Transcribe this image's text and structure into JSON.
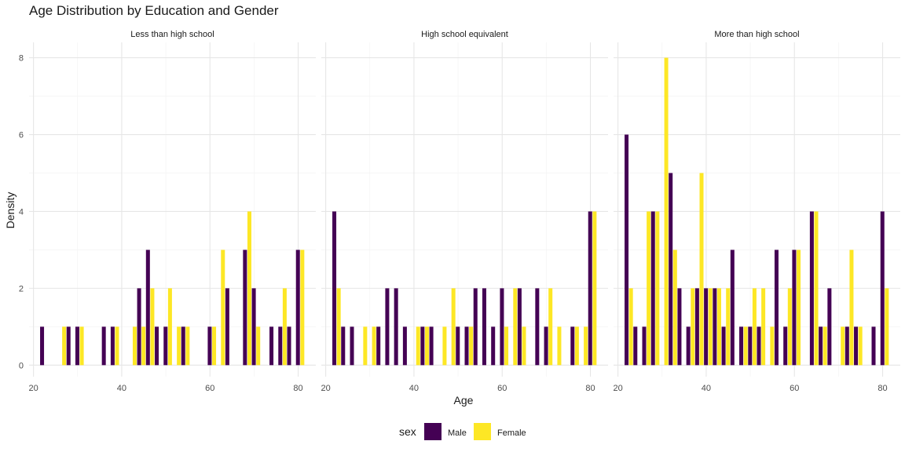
{
  "chart_data": {
    "type": "bar",
    "title": "Age Distribution by Education and Gender",
    "xlabel": "Age",
    "ylabel": "Density",
    "xlim": [
      19,
      84
    ],
    "ylim": [
      -0.3,
      8.4
    ],
    "x_ticks": [
      20,
      40,
      60,
      80
    ],
    "y_ticks": [
      0,
      2,
      4,
      6,
      8
    ],
    "grid": true,
    "legend": {
      "title": "sex",
      "placement": "bottom",
      "entries": [
        {
          "name": "Male",
          "color": "#440154"
        },
        {
          "name": "Female",
          "color": "#FDE725"
        }
      ]
    },
    "panels": [
      {
        "name": "Less than high school",
        "series": [
          {
            "name": "Male",
            "points": [
              [
                22,
                1
              ],
              [
                28,
                1
              ],
              [
                30,
                1
              ],
              [
                36,
                1
              ],
              [
                38,
                1
              ],
              [
                44,
                2
              ],
              [
                46,
                3
              ],
              [
                48,
                1
              ],
              [
                50,
                1
              ],
              [
                54,
                1
              ],
              [
                60,
                1
              ],
              [
                64,
                2
              ],
              [
                68,
                3
              ],
              [
                70,
                2
              ],
              [
                74,
                1
              ],
              [
                76,
                1
              ],
              [
                78,
                1
              ],
              [
                80,
                3
              ]
            ]
          },
          {
            "name": "Female",
            "points": [
              [
                27,
                1
              ],
              [
                31,
                1
              ],
              [
                39,
                1
              ],
              [
                43,
                1
              ],
              [
                45,
                1
              ],
              [
                47,
                2
              ],
              [
                51,
                2
              ],
              [
                53,
                1
              ],
              [
                55,
                1
              ],
              [
                61,
                1
              ],
              [
                63,
                3
              ],
              [
                69,
                4
              ],
              [
                71,
                1
              ],
              [
                77,
                2
              ],
              [
                81,
                3
              ]
            ]
          }
        ]
      },
      {
        "name": "High school equivalent",
        "series": [
          {
            "name": "Male",
            "points": [
              [
                22,
                4
              ],
              [
                24,
                1
              ],
              [
                26,
                1
              ],
              [
                32,
                1
              ],
              [
                34,
                2
              ],
              [
                36,
                2
              ],
              [
                38,
                1
              ],
              [
                42,
                1
              ],
              [
                44,
                1
              ],
              [
                50,
                1
              ],
              [
                52,
                1
              ],
              [
                54,
                2
              ],
              [
                56,
                2
              ],
              [
                58,
                1
              ],
              [
                60,
                2
              ],
              [
                64,
                2
              ],
              [
                68,
                2
              ],
              [
                70,
                1
              ],
              [
                76,
                1
              ],
              [
                80,
                4
              ]
            ]
          },
          {
            "name": "Female",
            "points": [
              [
                23,
                2
              ],
              [
                29,
                1
              ],
              [
                31,
                1
              ],
              [
                41,
                1
              ],
              [
                43,
                1
              ],
              [
                47,
                1
              ],
              [
                49,
                2
              ],
              [
                53,
                1
              ],
              [
                61,
                1
              ],
              [
                63,
                2
              ],
              [
                65,
                1
              ],
              [
                71,
                2
              ],
              [
                73,
                1
              ],
              [
                77,
                1
              ],
              [
                79,
                1
              ],
              [
                81,
                4
              ]
            ]
          }
        ]
      },
      {
        "name": "More than high school",
        "series": [
          {
            "name": "Male",
            "points": [
              [
                22,
                6
              ],
              [
                24,
                1
              ],
              [
                26,
                1
              ],
              [
                28,
                4
              ],
              [
                32,
                5
              ],
              [
                34,
                2
              ],
              [
                36,
                1
              ],
              [
                38,
                2
              ],
              [
                40,
                2
              ],
              [
                42,
                2
              ],
              [
                44,
                1
              ],
              [
                46,
                3
              ],
              [
                48,
                1
              ],
              [
                50,
                1
              ],
              [
                52,
                1
              ],
              [
                56,
                3
              ],
              [
                58,
                1
              ],
              [
                60,
                3
              ],
              [
                64,
                4
              ],
              [
                66,
                1
              ],
              [
                68,
                2
              ],
              [
                72,
                1
              ],
              [
                74,
                1
              ],
              [
                78,
                1
              ],
              [
                80,
                4
              ]
            ]
          },
          {
            "name": "Female",
            "points": [
              [
                23,
                2
              ],
              [
                27,
                4
              ],
              [
                29,
                4
              ],
              [
                31,
                8
              ],
              [
                33,
                3
              ],
              [
                37,
                2
              ],
              [
                39,
                5
              ],
              [
                41,
                2
              ],
              [
                43,
                2
              ],
              [
                45,
                2
              ],
              [
                49,
                1
              ],
              [
                51,
                2
              ],
              [
                53,
                2
              ],
              [
                55,
                1
              ],
              [
                59,
                2
              ],
              [
                61,
                3
              ],
              [
                65,
                4
              ],
              [
                67,
                1
              ],
              [
                71,
                1
              ],
              [
                73,
                3
              ],
              [
                75,
                1
              ],
              [
                81,
                2
              ]
            ]
          }
        ]
      }
    ]
  }
}
